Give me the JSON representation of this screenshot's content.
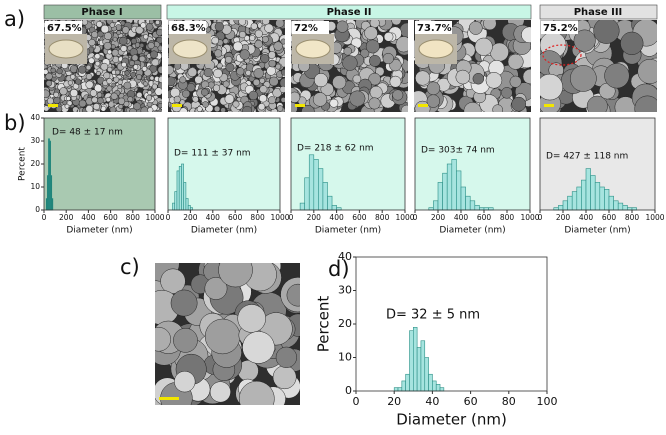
{
  "panel_labels": [
    "a)",
    "b)",
    "c)",
    "d)"
  ],
  "phases": [
    "Phase I",
    "Phase II",
    "Phase III"
  ],
  "percentages": [
    "67.5%",
    "68.3%",
    "72%",
    "73.7%",
    "75.2%"
  ],
  "chart_data": [
    {
      "type": "histogram",
      "annotation": "D= 48 ± 17 nm",
      "xlabel": "Diameter (nm)",
      "ylabel": "Percent",
      "bins": [
        20,
        30,
        40,
        50,
        60,
        70,
        80
      ],
      "values": [
        5,
        15,
        31,
        30,
        15,
        5
      ],
      "xlim": [
        0,
        1000
      ],
      "xticks": [
        0,
        200,
        400,
        600,
        800,
        1000
      ],
      "ylim": [
        0,
        40
      ],
      "yticks": [
        0,
        10,
        20,
        30,
        40
      ],
      "color": "#16776b",
      "background": "#a9c9b1"
    },
    {
      "type": "histogram",
      "annotation": "D= 111 ± 37 nm",
      "xlabel": "Diameter (nm)",
      "bins": [
        40,
        60,
        80,
        100,
        120,
        140,
        160,
        180,
        200,
        220
      ],
      "values": [
        3,
        8,
        17,
        19,
        20,
        12,
        5,
        2,
        1
      ],
      "xlim": [
        0,
        1000
      ],
      "xticks": [
        0,
        200,
        400,
        600,
        800,
        1000
      ],
      "ylim": [
        0,
        40
      ],
      "color": "#a6e4df",
      "background": "#d6f8ec"
    },
    {
      "type": "histogram",
      "annotation": "D= 218 ± 62 nm",
      "xlabel": "Diameter (nm)",
      "bins": [
        80,
        120,
        160,
        200,
        240,
        280,
        320,
        360,
        400,
        440
      ],
      "values": [
        3,
        14,
        24,
        22,
        18,
        12,
        6,
        2,
        1
      ],
      "xlim": [
        0,
        1000
      ],
      "xticks": [
        0,
        200,
        400,
        600,
        800,
        1000
      ],
      "ylim": [
        0,
        40
      ],
      "color": "#a6e4df",
      "background": "#d6f8ec"
    },
    {
      "type": "histogram",
      "annotation": "D= 303± 74 nm",
      "xlabel": "Diameter (nm)",
      "bins": [
        120,
        160,
        200,
        240,
        280,
        320,
        360,
        400,
        440,
        480,
        520,
        560,
        600,
        640,
        680
      ],
      "values": [
        1,
        4,
        12,
        16,
        20,
        22,
        17,
        10,
        6,
        4,
        2,
        1,
        1,
        1
      ],
      "xlim": [
        0,
        1000
      ],
      "xticks": [
        0,
        200,
        400,
        600,
        800,
        1000
      ],
      "ylim": [
        0,
        40
      ],
      "color": "#a6e4df",
      "background": "#d6f8ec"
    },
    {
      "type": "histogram",
      "annotation": "D= 427 ± 118 nm",
      "xlabel": "Diameter (nm)",
      "bins": [
        120,
        160,
        200,
        240,
        280,
        320,
        360,
        400,
        440,
        480,
        520,
        560,
        600,
        640,
        680,
        720,
        760,
        800,
        840
      ],
      "values": [
        1,
        2,
        4,
        6,
        8,
        10,
        13,
        18,
        15,
        12,
        10,
        9,
        6,
        4,
        3,
        2,
        1,
        1
      ],
      "xlim": [
        0,
        1000
      ],
      "xticks": [
        0,
        200,
        400,
        600,
        800,
        1000
      ],
      "ylim": [
        0,
        40
      ],
      "color": "#a6e4df",
      "background": "#e8e8e8"
    },
    {
      "type": "histogram",
      "annotation": "D= 32 ± 5 nm",
      "xlabel": "Diameter (nm)",
      "ylabel": "Percent",
      "bins": [
        20,
        22,
        24,
        26,
        28,
        30,
        32,
        34,
        36,
        38,
        40,
        42,
        44,
        46
      ],
      "values": [
        1,
        1,
        3,
        5,
        18,
        19,
        13,
        15,
        10,
        5,
        3,
        2,
        1
      ],
      "xlim": [
        0,
        100
      ],
      "xticks": [
        0,
        20,
        40,
        60,
        80,
        100
      ],
      "ylim": [
        0,
        40
      ],
      "yticks": [
        0,
        10,
        20,
        30,
        40
      ],
      "color": "#a6e4df",
      "background": "#ffffff"
    }
  ]
}
